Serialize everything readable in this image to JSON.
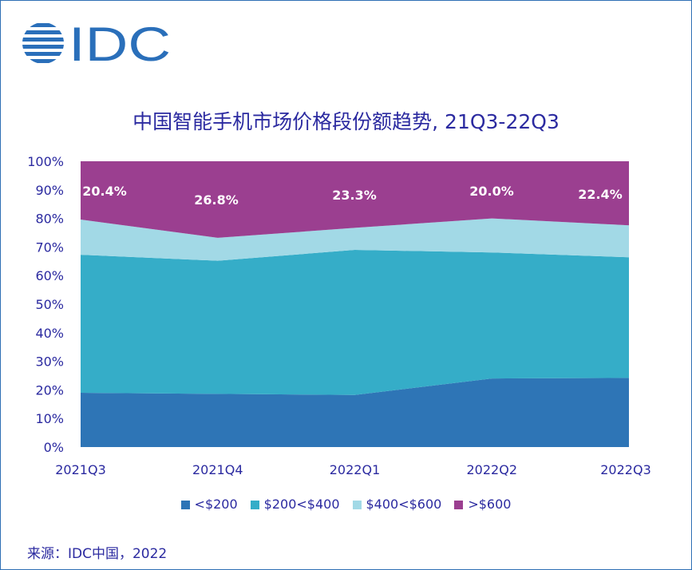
{
  "logo": {
    "text": "IDC",
    "color": "#2a6fba"
  },
  "source": "来源：IDC中国，2022",
  "chart_data": {
    "type": "area",
    "stacked": true,
    "normalized": true,
    "title": "中国智能手机市场价格段份额趋势, 21Q3-22Q3",
    "categories": [
      "2021Q3",
      "2021Q4",
      "2022Q1",
      "2022Q2",
      "2022Q3"
    ],
    "ylim": [
      0,
      100
    ],
    "yticks": [
      0,
      10,
      20,
      30,
      40,
      50,
      60,
      70,
      80,
      90,
      100
    ],
    "ytick_labels": [
      "0%",
      "10%",
      "20%",
      "30%",
      "40%",
      "50%",
      "60%",
      "70%",
      "80%",
      "90%",
      "100%"
    ],
    "legend_position": "bottom",
    "grid": false,
    "series": [
      {
        "name": "<$200",
        "color": "#2e75b6",
        "values": [
          19.0,
          18.6,
          18.2,
          24.0,
          24.2
        ]
      },
      {
        "name": "$200<$400",
        "color": "#35adc8",
        "values": [
          48.3,
          46.6,
          50.8,
          44.1,
          42.2
        ]
      },
      {
        "name": "$400<$600",
        "color": "#a2d9e6",
        "values": [
          12.3,
          8.0,
          7.7,
          11.9,
          11.2
        ]
      },
      {
        "name": ">$600",
        "color": "#9b3f90",
        "values": [
          20.4,
          26.8,
          23.3,
          20.0,
          22.4
        ]
      }
    ],
    "data_labels": [
      "20.4%",
      "26.8%",
      "23.3%",
      "20.0%",
      "22.4%"
    ]
  }
}
